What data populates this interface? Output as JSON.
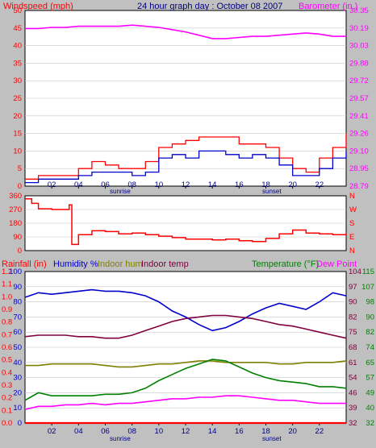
{
  "chart_data": [
    {
      "type": "line",
      "title": "24 hour graph day : October 08 2007",
      "left_axis_label": "Windspeed (mph)",
      "right_axis_label": "Barometer (in.)",
      "left_ticks": [
        "0",
        "5",
        "10",
        "15",
        "20",
        "25",
        "30",
        "35",
        "40",
        "45",
        "50"
      ],
      "right_ticks": [
        "28.79",
        "28.95",
        "29.10",
        "29.26",
        "29.41",
        "29.57",
        "29.72",
        "29.88",
        "30.03",
        "30.19",
        "30.35"
      ],
      "left_range": [
        0,
        50
      ],
      "right_range": [
        28.79,
        30.35
      ],
      "x_ticks": [
        "02",
        "04",
        "06",
        "08",
        "10",
        "12",
        "14",
        "16",
        "18",
        "20",
        "22"
      ],
      "x_range_hours": [
        0,
        24
      ],
      "sunrise_label": "sunrise",
      "sunset_label": "sunset",
      "sunrise_hour": 7.2,
      "sunset_hour": 18.6,
      "series": [
        {
          "name": "Barometer (in.)",
          "axis": "right",
          "color": "#ff00ff",
          "x": [
            0,
            1,
            2,
            3,
            4,
            5,
            6,
            7,
            8,
            9,
            10,
            11,
            12,
            13,
            14,
            15,
            16,
            17,
            18,
            19,
            20,
            21,
            22,
            23,
            24
          ],
          "y": [
            30.19,
            30.19,
            30.2,
            30.2,
            30.21,
            30.21,
            30.21,
            30.21,
            30.22,
            30.21,
            30.2,
            30.18,
            30.16,
            30.13,
            30.1,
            30.1,
            30.11,
            30.12,
            30.12,
            30.13,
            30.14,
            30.15,
            30.14,
            30.12,
            30.12
          ]
        },
        {
          "name": "Wind gust",
          "axis": "left",
          "color": "#ff0000",
          "x": [
            0,
            1,
            2,
            3,
            4,
            5,
            6,
            7,
            8,
            9,
            10,
            11,
            12,
            13,
            14,
            15,
            16,
            17,
            18,
            19,
            20,
            21,
            22,
            23,
            24
          ],
          "y": [
            2,
            3,
            3,
            3,
            5,
            7,
            6,
            5,
            5,
            7,
            11,
            12,
            13,
            14,
            14,
            14,
            12,
            12,
            11,
            8,
            5,
            4,
            8,
            11,
            15
          ]
        },
        {
          "name": "Wind average",
          "axis": "left",
          "color": "#0000cc",
          "x": [
            0,
            1,
            2,
            3,
            4,
            5,
            6,
            7,
            8,
            9,
            10,
            11,
            12,
            13,
            14,
            15,
            16,
            17,
            18,
            19,
            20,
            21,
            22,
            23,
            24
          ],
          "y": [
            1,
            2,
            2,
            2,
            3,
            4,
            4,
            4,
            3,
            4,
            8,
            9,
            8,
            10,
            10,
            9,
            8,
            9,
            8,
            6,
            3,
            3,
            5,
            8,
            10
          ]
        }
      ]
    },
    {
      "type": "line",
      "title": "",
      "left_ticks": [
        "0",
        "90",
        "180",
        "270",
        "360"
      ],
      "right_ticks": [
        "N",
        "E",
        "S",
        "W",
        "N"
      ],
      "left_range": [
        0,
        360
      ],
      "x_ticks": [],
      "series": [
        {
          "name": "Wind direction",
          "axis": "left",
          "color": "#ff0000",
          "x": [
            0,
            0.5,
            1,
            2,
            3,
            3.3,
            3.5,
            4,
            5,
            6,
            7,
            8,
            9,
            10,
            11,
            12,
            13,
            14,
            15,
            16,
            17,
            18,
            19,
            20,
            21,
            22,
            23,
            24
          ],
          "y": [
            340,
            310,
            275,
            270,
            270,
            300,
            40,
            105,
            130,
            125,
            110,
            115,
            105,
            95,
            85,
            75,
            75,
            70,
            75,
            65,
            60,
            80,
            110,
            135,
            115,
            110,
            105,
            115
          ]
        }
      ]
    },
    {
      "type": "line",
      "title": "",
      "rainfall_label": "Rainfall (in)",
      "humidity_label": "Humidity %",
      "indoor_hum_label": "Indoor hum",
      "indoor_temp_label": "Indoor temp",
      "temperature_label": "Temperature (°F)",
      "dew_point_label": "Dew Point",
      "rain_ticks": [
        "0.0",
        "0.1",
        "0.2",
        "0.3",
        "0.4",
        "0.5",
        "0.6",
        "0.7",
        "0.8",
        "0.9",
        "1.0",
        "1.1",
        "1.2"
      ],
      "hum_ticks": [
        "0",
        "10",
        "20",
        "30",
        "40",
        "50",
        "60",
        "70",
        "80",
        "90",
        "100"
      ],
      "temp_ticks_a": [
        "32",
        "39",
        "46",
        "54",
        "61",
        "68",
        "75",
        "82",
        "90",
        "97",
        "104"
      ],
      "temp_ticks_b": [
        "32",
        "40",
        "49",
        "57",
        "65",
        "74",
        "82",
        "90",
        "98",
        "107",
        "115"
      ],
      "rain_range": [
        0,
        1.2
      ],
      "hum_range": [
        0,
        100
      ],
      "x_ticks": [
        "02",
        "04",
        "06",
        "08",
        "10",
        "12",
        "14",
        "16",
        "18",
        "20",
        "22"
      ],
      "sunrise_label": "sunrise",
      "sunset_label": "sunset",
      "series": [
        {
          "name": "Rainfall (in)",
          "axis": "rain",
          "color": "#ff0000",
          "x": [
            0,
            24
          ],
          "y": [
            0,
            0
          ]
        },
        {
          "name": "Humidity %",
          "axis": "hum",
          "color": "#0000cc",
          "x": [
            0,
            1,
            2,
            3,
            4,
            5,
            6,
            7,
            8,
            9,
            10,
            11,
            12,
            13,
            14,
            15,
            16,
            17,
            18,
            19,
            20,
            21,
            22,
            23,
            24
          ],
          "y": [
            83,
            86,
            85,
            86,
            87,
            88,
            87,
            87,
            86,
            84,
            80,
            74,
            70,
            65,
            61,
            63,
            67,
            72,
            76,
            79,
            77,
            75,
            80,
            86,
            84
          ]
        },
        {
          "name": "Indoor hum",
          "axis": "hum",
          "color": "#808000",
          "x": [
            0,
            1,
            2,
            3,
            4,
            5,
            6,
            7,
            8,
            9,
            10,
            11,
            12,
            13,
            14,
            15,
            16,
            17,
            18,
            19,
            20,
            21,
            22,
            23,
            24
          ],
          "y": [
            38,
            38,
            39,
            39,
            39,
            39,
            38,
            37,
            37,
            38,
            39,
            39,
            40,
            41,
            41,
            40,
            40,
            40,
            40,
            39,
            39,
            40,
            40,
            40,
            41
          ]
        },
        {
          "name": "Indoor temp",
          "axis": "hum",
          "color": "#800040",
          "x": [
            0,
            1,
            2,
            3,
            4,
            5,
            6,
            7,
            8,
            9,
            10,
            11,
            12,
            13,
            14,
            15,
            16,
            17,
            18,
            19,
            20,
            21,
            22,
            23,
            24
          ],
          "y": [
            57,
            58,
            58,
            58,
            57,
            57,
            56,
            56,
            58,
            61,
            64,
            67,
            69,
            70,
            71,
            71,
            70,
            69,
            67,
            65,
            64,
            62,
            60,
            58,
            56
          ]
        },
        {
          "name": "Temperature (°F)",
          "axis": "hum",
          "color": "#008000",
          "x": [
            0,
            1,
            2,
            3,
            4,
            5,
            6,
            7,
            8,
            9,
            10,
            11,
            12,
            13,
            14,
            15,
            16,
            17,
            18,
            19,
            20,
            21,
            22,
            23,
            24
          ],
          "y": [
            15,
            20,
            18,
            18,
            18,
            18,
            19,
            19,
            20,
            23,
            28,
            32,
            36,
            39,
            42,
            41,
            37,
            33,
            30,
            28,
            27,
            26,
            24,
            24,
            23
          ]
        },
        {
          "name": "Dew Point",
          "axis": "hum",
          "color": "#ff00ff",
          "x": [
            0,
            1,
            2,
            3,
            4,
            5,
            6,
            7,
            8,
            9,
            10,
            11,
            12,
            13,
            14,
            15,
            16,
            17,
            18,
            19,
            20,
            21,
            22,
            23,
            24
          ],
          "y": [
            9,
            11,
            11,
            12,
            12,
            13,
            12,
            13,
            13,
            14,
            15,
            16,
            16,
            17,
            17,
            18,
            18,
            17,
            16,
            15,
            15,
            14,
            13,
            13,
            13
          ]
        }
      ]
    }
  ]
}
